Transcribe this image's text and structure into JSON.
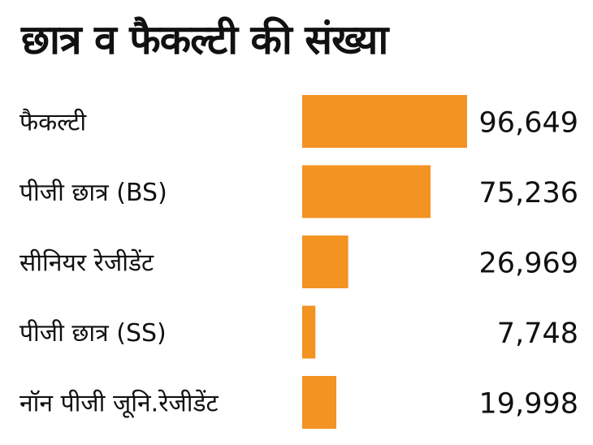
{
  "title": "छात्र व फैकल्टी की संख्या",
  "colors": {
    "bar": "#f39322",
    "text": "#111111",
    "background": "#ffffff"
  },
  "chart_data": {
    "type": "bar",
    "orientation": "horizontal",
    "title": "छात्र व फैकल्टी की संख्या",
    "categories": [
      "फैकल्टी",
      "पीजी छात्र (BS)",
      "सीनियर रेजीडेंट",
      "पीजी छात्र (SS)",
      "नॉन पीजी जूनि.रेजीडेंट"
    ],
    "values": [
      96649,
      75236,
      26969,
      7748,
      19998
    ],
    "value_labels": [
      "96,649",
      "75,236",
      "26,969",
      "7,748",
      "19,998"
    ],
    "xlim": [
      0,
      96649
    ],
    "grid": false,
    "legend": "none"
  }
}
